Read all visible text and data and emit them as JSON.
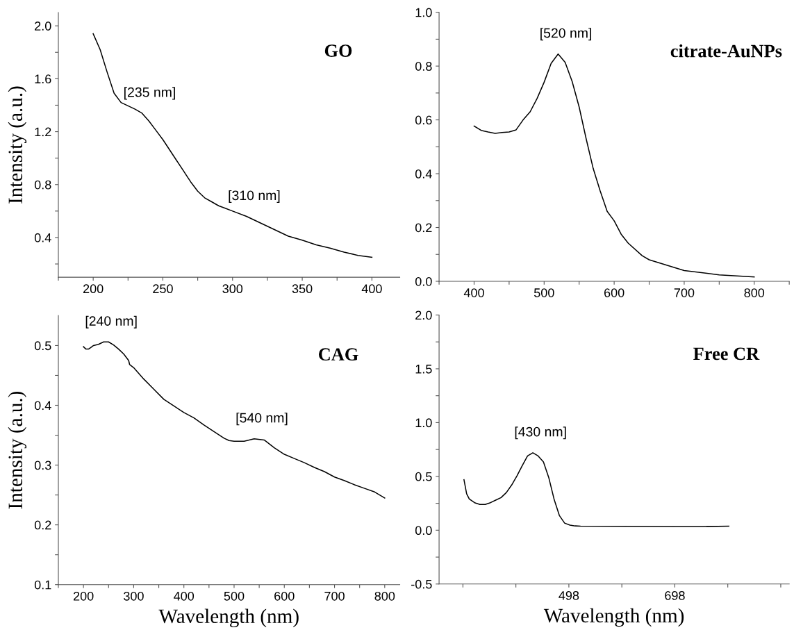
{
  "chart_data": [
    {
      "type": "line",
      "title": "GO",
      "ylabel": "Intensity (a.u.)",
      "xlim": [
        175,
        420
      ],
      "ylim": [
        0.1,
        2.1
      ],
      "xticks": [
        {
          "value": 175,
          "label": null
        },
        200,
        {
          "value": 225,
          "label": null
        },
        250,
        {
          "value": 275,
          "label": null
        },
        300,
        {
          "value": 325,
          "label": null
        },
        350,
        {
          "value": 375,
          "label": null
        },
        400
      ],
      "yticks": [
        {
          "value": 0.2,
          "label": null
        },
        0.4,
        {
          "value": 0.6,
          "label": null
        },
        0.8,
        {
          "value": 1.0,
          "label": null
        },
        1.2,
        {
          "value": 1.4,
          "label": null
        },
        1.6,
        {
          "value": 1.8,
          "label": null
        },
        {
          "value": 2,
          "label": "2.0"
        }
      ],
      "x": [
        200,
        205,
        210,
        215,
        220,
        225,
        230,
        235,
        240,
        245,
        250,
        255,
        260,
        265,
        270,
        275,
        280,
        285,
        290,
        295,
        300,
        310,
        320,
        330,
        340,
        350,
        360,
        370,
        380,
        390,
        400
      ],
      "series": [
        {
          "color": "#000000",
          "values": [
            1.94,
            1.82,
            1.65,
            1.49,
            1.42,
            1.395,
            1.37,
            1.34,
            1.28,
            1.21,
            1.14,
            1.06,
            0.98,
            0.9,
            0.82,
            0.75,
            0.7,
            0.67,
            0.64,
            0.62,
            0.6,
            0.56,
            0.51,
            0.46,
            0.41,
            0.38,
            0.345,
            0.32,
            0.29,
            0.265,
            0.25
          ]
        }
      ],
      "annotations": [
        {
          "text": "[235 nm]",
          "x": 235,
          "y": 1.34
        },
        {
          "text": "[310 nm]",
          "x": 310,
          "y": 0.56
        }
      ]
    },
    {
      "type": "line",
      "title": "citrate-AuNPs",
      "xlim": [
        350,
        850
      ],
      "ylim": [
        0.0,
        1.0
      ],
      "xticks": [
        {
          "value": 350,
          "label": null
        },
        400,
        {
          "value": 450,
          "label": null
        },
        500,
        {
          "value": 550,
          "label": null
        },
        600,
        {
          "value": 650,
          "label": null
        },
        700,
        {
          "value": 750,
          "label": null
        },
        800,
        {
          "value": 850,
          "label": null
        }
      ],
      "yticks": [
        {
          "value": 0,
          "label": "0.0"
        },
        {
          "value": 0.1,
          "label": null
        },
        0.2,
        {
          "value": 0.3,
          "label": null
        },
        0.4,
        {
          "value": 0.5,
          "label": null
        },
        0.6,
        {
          "value": 0.7,
          "label": null
        },
        0.8,
        {
          "value": 0.9,
          "label": null
        },
        {
          "value": 1,
          "label": "1.0"
        }
      ],
      "x": [
        400,
        410,
        420,
        430,
        440,
        450,
        460,
        470,
        480,
        490,
        500,
        510,
        520,
        530,
        540,
        550,
        560,
        570,
        580,
        590,
        600,
        610,
        620,
        640,
        650,
        700,
        750,
        800
      ],
      "series": [
        {
          "color": "#000000",
          "values": [
            0.577,
            0.561,
            0.555,
            0.55,
            0.553,
            0.555,
            0.563,
            0.6,
            0.63,
            0.68,
            0.74,
            0.81,
            0.845,
            0.814,
            0.743,
            0.648,
            0.53,
            0.42,
            0.336,
            0.26,
            0.225,
            0.175,
            0.142,
            0.095,
            0.08,
            0.04,
            0.024,
            0.016
          ]
        }
      ],
      "annotations": [
        {
          "text": "[520 nm]",
          "x": 520,
          "y": 0.845
        }
      ]
    },
    {
      "type": "line",
      "title": "CAG",
      "ylabel": "Intensity (a.u.)",
      "xlabel": "Wavelength (nm)",
      "xlim": [
        150,
        830
      ],
      "ylim": [
        0.1,
        0.55
      ],
      "xticks": [
        {
          "value": 150,
          "label": null
        },
        200,
        {
          "value": 250,
          "label": null
        },
        300,
        {
          "value": 350,
          "label": null
        },
        400,
        {
          "value": 450,
          "label": null
        },
        500,
        {
          "value": 550,
          "label": null
        },
        600,
        {
          "value": 650,
          "label": null
        },
        700,
        {
          "value": 750,
          "label": null
        },
        800
      ],
      "yticks": [
        0.1,
        {
          "value": 0.15,
          "label": null
        },
        0.2,
        {
          "value": 0.25,
          "label": null
        },
        0.3,
        {
          "value": 0.35,
          "label": null
        },
        0.4,
        {
          "value": 0.45,
          "label": null
        },
        0.5
      ],
      "x": [
        200,
        205,
        210,
        215,
        220,
        230,
        240,
        250,
        260,
        270,
        280,
        290,
        292,
        300,
        320,
        340,
        360,
        380,
        400,
        420,
        440,
        460,
        480,
        490,
        500,
        520,
        540,
        560,
        580,
        600,
        620,
        640,
        660,
        680,
        700,
        720,
        740,
        760,
        780,
        800
      ],
      "series": [
        {
          "color": "#000000",
          "values": [
            0.498,
            0.494,
            0.494,
            0.497,
            0.5,
            0.502,
            0.506,
            0.506,
            0.501,
            0.494,
            0.486,
            0.475,
            0.468,
            0.463,
            0.444,
            0.427,
            0.41,
            0.399,
            0.388,
            0.379,
            0.367,
            0.356,
            0.345,
            0.341,
            0.34,
            0.34,
            0.344,
            0.342,
            0.329,
            0.318,
            0.311,
            0.304,
            0.296,
            0.289,
            0.28,
            0.274,
            0.267,
            0.261,
            0.255,
            0.245
          ]
        }
      ],
      "annotations": [
        {
          "text": "[240 nm]",
          "x": 240,
          "y": 0.506
        },
        {
          "text": "[540 nm]",
          "x": 540,
          "y": 0.344
        }
      ]
    },
    {
      "type": "line",
      "title": "Free CR",
      "xlabel": "Wavelength (nm)",
      "xlim": [
        253,
        914
      ],
      "ylim": [
        -0.5,
        2.0
      ],
      "xticks": [
        {
          "value": 298,
          "label": null
        },
        {
          "value": 398,
          "label": null
        },
        498,
        {
          "value": 598,
          "label": null
        },
        698,
        {
          "value": 798,
          "label": null
        },
        {
          "value": 898,
          "label": null
        }
      ],
      "yticks": [
        -0.5,
        {
          "value": -0.25,
          "label": null
        },
        {
          "value": 0,
          "label": "0.0"
        },
        {
          "value": 0.25,
          "label": null
        },
        0.5,
        {
          "value": 0.75,
          "label": null
        },
        {
          "value": 1,
          "label": "1.0"
        },
        {
          "value": 1.25,
          "label": null
        },
        1.5,
        {
          "value": 1.75,
          "label": null
        },
        {
          "value": 2,
          "label": "2.0"
        }
      ],
      "x": [
        300,
        305,
        310,
        320,
        330,
        340,
        350,
        360,
        370,
        380,
        390,
        400,
        410,
        420,
        430,
        440,
        450,
        460,
        470,
        480,
        490,
        500,
        510,
        520,
        600,
        700,
        750,
        800
      ],
      "series": [
        {
          "color": "#000000",
          "values": [
            0.469,
            0.339,
            0.29,
            0.256,
            0.239,
            0.239,
            0.256,
            0.28,
            0.303,
            0.35,
            0.42,
            0.505,
            0.6,
            0.69,
            0.72,
            0.69,
            0.635,
            0.49,
            0.29,
            0.137,
            0.066,
            0.047,
            0.04,
            0.038,
            0.036,
            0.033,
            0.033,
            0.038
          ]
        }
      ],
      "annotations": [
        {
          "text": "[430 nm]",
          "x": 430,
          "y": 0.72
        }
      ]
    }
  ]
}
